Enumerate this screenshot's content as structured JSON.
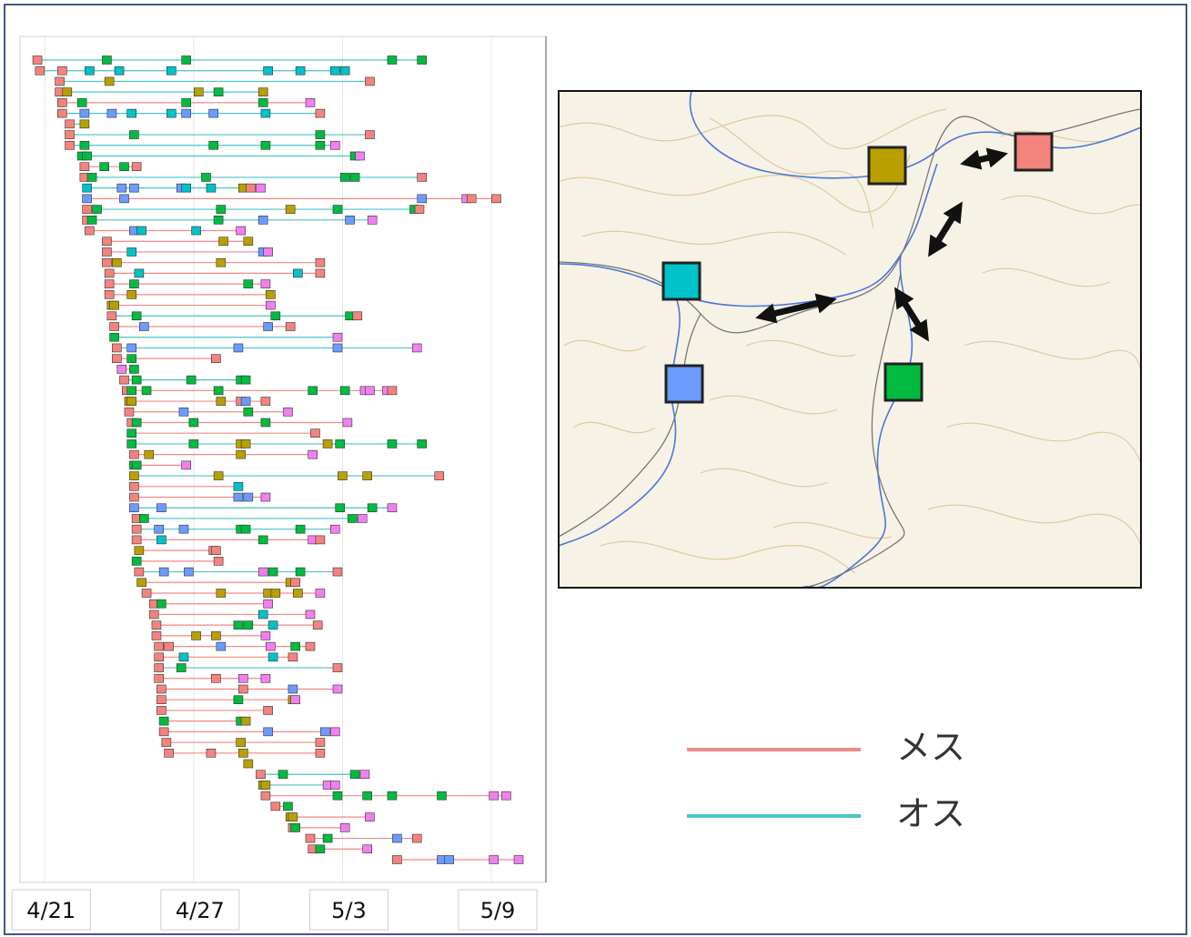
{
  "chart_data": {
    "type": "timeline",
    "xlim": [
      -1.0,
      20.2
    ],
    "xticks": [
      {
        "value": 0,
        "label": "4/21"
      },
      {
        "value": 6,
        "label": "4/27"
      },
      {
        "value": 12,
        "label": "5/3"
      },
      {
        "value": 18,
        "label": "5/9"
      }
    ],
    "grid": true,
    "series": [
      {
        "name": "メス",
        "color": "#f08a8a"
      },
      {
        "name": "オス",
        "color": "#4cc3c3"
      }
    ],
    "stations": [
      "#f4837d",
      "#b9a000",
      "#00c2c9",
      "#6b9bff",
      "#00bb3f",
      "#f27ff0"
    ],
    "rows": [
      {
        "series": 1,
        "x": [
          -0.3,
          2.5,
          5.7,
          14.0,
          15.2
        ],
        "station": [
          0,
          4,
          4,
          4,
          4
        ]
      },
      {
        "series": 1,
        "x": [
          -0.2,
          0.7,
          1.8,
          3.0,
          5.1,
          9.0,
          10.3,
          11.7,
          12.1
        ],
        "station": [
          0,
          0,
          2,
          2,
          2,
          2,
          2,
          2,
          2
        ]
      },
      {
        "series": 1,
        "x": [
          0.6,
          2.6,
          13.1
        ],
        "station": [
          0,
          1,
          0
        ]
      },
      {
        "series": 1,
        "x": [
          0.6,
          0.9,
          6.2,
          7.0,
          8.8
        ],
        "station": [
          0,
          1,
          1,
          4,
          1
        ]
      },
      {
        "series": 0,
        "x": [
          0.7,
          1.5,
          5.7,
          8.8,
          10.7
        ],
        "station": [
          0,
          4,
          4,
          4,
          5
        ]
      },
      {
        "series": 1,
        "x": [
          0.7,
          1.6,
          2.7,
          3.5,
          5.1,
          5.7,
          6.8,
          8.9,
          11.1
        ],
        "station": [
          0,
          3,
          3,
          2,
          2,
          3,
          3,
          2,
          0
        ]
      },
      {
        "series": 1,
        "x": [
          1.0,
          1.6
        ],
        "station": [
          0,
          1
        ]
      },
      {
        "series": 1,
        "x": [
          1.0,
          3.6,
          11.1,
          13.1
        ],
        "station": [
          0,
          4,
          4,
          0
        ]
      },
      {
        "series": 1,
        "x": [
          1.0,
          1.6,
          6.8,
          8.9,
          11.1,
          11.7
        ],
        "station": [
          0,
          4,
          4,
          4,
          4,
          5
        ]
      },
      {
        "series": 1,
        "x": [
          1.5,
          1.7,
          12.5,
          12.7
        ],
        "station": [
          4,
          4,
          4,
          5
        ]
      },
      {
        "series": 0,
        "x": [
          1.6,
          2.4,
          3.2,
          3.7
        ],
        "station": [
          0,
          4,
          4,
          0
        ]
      },
      {
        "series": 1,
        "x": [
          1.6,
          1.9,
          6.5,
          12.1,
          12.5,
          15.2
        ],
        "station": [
          0,
          4,
          4,
          4,
          4,
          0
        ]
      },
      {
        "series": 1,
        "x": [
          1.7,
          3.1,
          3.6,
          5.5,
          5.7,
          6.7,
          8.0,
          8.3,
          8.7
        ],
        "station": [
          2,
          3,
          3,
          3,
          2,
          2,
          1,
          0,
          5
        ]
      },
      {
        "series": 0,
        "x": [
          1.7,
          3.2,
          15.2,
          17.0,
          17.2,
          18.2
        ],
        "station": [
          3,
          3,
          3,
          5,
          0,
          0
        ]
      },
      {
        "series": 1,
        "x": [
          1.7,
          2.1,
          7.1,
          9.9,
          11.8,
          14.9,
          15.1
        ],
        "station": [
          0,
          4,
          4,
          1,
          4,
          4,
          0
        ]
      },
      {
        "series": 1,
        "x": [
          1.7,
          1.9,
          7.0,
          8.8,
          12.3,
          13.2
        ],
        "station": [
          0,
          4,
          4,
          3,
          3,
          5
        ]
      },
      {
        "series": 0,
        "x": [
          1.8,
          3.6,
          3.9,
          6.1,
          7.9
        ],
        "station": [
          0,
          3,
          2,
          2,
          5
        ]
      },
      {
        "series": 0,
        "x": [
          2.5,
          7.2,
          8.2
        ],
        "station": [
          0,
          1,
          1
        ]
      },
      {
        "series": 0,
        "x": [
          2.5,
          3.5,
          8.8,
          9.0
        ],
        "station": [
          0,
          2,
          3,
          5
        ]
      },
      {
        "series": 0,
        "x": [
          2.5,
          2.9,
          7.1,
          11.1
        ],
        "station": [
          0,
          1,
          1,
          0
        ]
      },
      {
        "series": 0,
        "x": [
          2.6,
          3.8,
          10.2,
          11.1
        ],
        "station": [
          0,
          2,
          2,
          0
        ]
      },
      {
        "series": 0,
        "x": [
          2.6,
          3.6,
          8.2,
          8.9
        ],
        "station": [
          0,
          4,
          4,
          5
        ]
      },
      {
        "series": 0,
        "x": [
          2.6,
          3.5,
          9.1
        ],
        "station": [
          0,
          1,
          1
        ]
      },
      {
        "series": 0,
        "x": [
          2.7,
          2.8,
          9.1
        ],
        "station": [
          1,
          1,
          5
        ]
      },
      {
        "series": 1,
        "x": [
          2.7,
          3.7,
          9.3,
          12.3,
          12.6
        ],
        "station": [
          0,
          4,
          4,
          4,
          0
        ]
      },
      {
        "series": 0,
        "x": [
          2.8,
          4.0,
          9.0,
          9.9
        ],
        "station": [
          0,
          3,
          3,
          0
        ]
      },
      {
        "series": 1,
        "x": [
          2.8,
          11.8
        ],
        "station": [
          4,
          5
        ]
      },
      {
        "series": 1,
        "x": [
          2.9,
          3.5,
          7.8,
          11.8,
          15.0
        ],
        "station": [
          0,
          3,
          3,
          3,
          5
        ]
      },
      {
        "series": 0,
        "x": [
          2.9,
          3.5,
          6.9
        ],
        "station": [
          0,
          4,
          0
        ]
      },
      {
        "series": 0,
        "x": [
          3.1,
          3.6
        ],
        "station": [
          5,
          4
        ]
      },
      {
        "series": 1,
        "x": [
          3.2,
          3.7,
          5.9,
          7.9,
          8.1
        ],
        "station": [
          0,
          4,
          4,
          4,
          4
        ]
      },
      {
        "series": 0,
        "x": [
          3.3,
          3.5,
          4.1,
          7.0,
          10.8,
          12.1,
          12.9,
          13.1,
          13.8,
          14.0
        ],
        "station": [
          0,
          4,
          4,
          4,
          4,
          4,
          5,
          5,
          5,
          0
        ]
      },
      {
        "series": 0,
        "x": [
          3.4,
          3.5,
          7.1,
          7.9,
          8.1,
          8.9
        ],
        "station": [
          1,
          1,
          1,
          0,
          3,
          0
        ]
      },
      {
        "series": 0,
        "x": [
          3.4,
          5.6,
          8.2,
          9.8
        ],
        "station": [
          0,
          3,
          4,
          5
        ]
      },
      {
        "series": 0,
        "x": [
          3.5,
          3.7,
          6.0,
          8.9,
          12.2
        ],
        "station": [
          0,
          4,
          4,
          4,
          5
        ]
      },
      {
        "series": 0,
        "x": [
          3.5,
          10.9
        ],
        "station": [
          4,
          0
        ]
      },
      {
        "series": 1,
        "x": [
          3.5,
          6.0,
          7.9,
          8.1,
          11.4,
          11.9,
          14.0,
          15.2
        ],
        "station": [
          4,
          4,
          1,
          1,
          1,
          4,
          4,
          4
        ]
      },
      {
        "series": 0,
        "x": [
          3.6,
          4.2,
          7.9,
          10.8
        ],
        "station": [
          0,
          1,
          1,
          5
        ]
      },
      {
        "series": 0,
        "x": [
          3.6,
          3.7,
          5.7
        ],
        "station": [
          4,
          4,
          5
        ]
      },
      {
        "series": 1,
        "x": [
          3.6,
          7.0,
          12.0,
          13.0,
          15.9
        ],
        "station": [
          1,
          1,
          1,
          1,
          0
        ]
      },
      {
        "series": 0,
        "x": [
          3.6,
          7.8
        ],
        "station": [
          0,
          2
        ]
      },
      {
        "series": 0,
        "x": [
          3.6,
          7.8,
          8.2,
          8.9
        ],
        "station": [
          0,
          3,
          3,
          5
        ]
      },
      {
        "series": 1,
        "x": [
          3.6,
          4.7,
          11.9,
          13.2,
          14.0
        ],
        "station": [
          3,
          3,
          4,
          4,
          5
        ]
      },
      {
        "series": 1,
        "x": [
          3.7,
          4.0,
          12.4,
          12.8
        ],
        "station": [
          0,
          4,
          4,
          5
        ]
      },
      {
        "series": 1,
        "x": [
          3.7,
          4.6,
          5.6,
          7.9,
          8.1,
          10.3,
          11.7
        ],
        "station": [
          0,
          3,
          3,
          4,
          4,
          4,
          5
        ]
      },
      {
        "series": 0,
        "x": [
          3.7,
          4.7,
          8.8,
          10.8,
          11.1
        ],
        "station": [
          0,
          2,
          4,
          5,
          0
        ]
      },
      {
        "series": 0,
        "x": [
          3.8,
          6.8,
          6.9
        ],
        "station": [
          1,
          0,
          0
        ]
      },
      {
        "series": 0,
        "x": [
          3.7,
          7.0
        ],
        "station": [
          4,
          0
        ]
      },
      {
        "series": 1,
        "x": [
          3.8,
          4.8,
          5.8,
          8.8,
          9.2,
          10.3,
          11.8
        ],
        "station": [
          0,
          3,
          3,
          5,
          4,
          4,
          0
        ]
      },
      {
        "series": 0,
        "x": [
          3.9,
          9.9,
          10.1
        ],
        "station": [
          1,
          1,
          0
        ]
      },
      {
        "series": 0,
        "x": [
          4.1,
          7.1,
          9.0,
          9.3,
          10.2,
          11.1
        ],
        "station": [
          0,
          1,
          1,
          1,
          1,
          5
        ]
      },
      {
        "series": 0,
        "x": [
          4.4,
          4.7,
          9.0
        ],
        "station": [
          0,
          4,
          5
        ]
      },
      {
        "series": 0,
        "x": [
          4.4,
          8.8,
          10.7
        ],
        "station": [
          0,
          2,
          5
        ]
      },
      {
        "series": 0,
        "x": [
          4.5,
          7.8,
          8.2,
          9.2,
          11.0
        ],
        "station": [
          0,
          4,
          4,
          2,
          0
        ]
      },
      {
        "series": 0,
        "x": [
          4.5,
          6.1,
          6.9,
          8.9
        ],
        "station": [
          0,
          1,
          1,
          5
        ]
      },
      {
        "series": 0,
        "x": [
          4.6,
          5.0,
          7.1,
          9.1,
          10.1,
          10.7
        ],
        "station": [
          0,
          0,
          3,
          5,
          4,
          0
        ]
      },
      {
        "series": 0,
        "x": [
          4.6,
          5.6,
          9.2,
          10.0
        ],
        "station": [
          0,
          2,
          2,
          0
        ]
      },
      {
        "series": 1,
        "x": [
          4.6,
          5.5,
          11.8
        ],
        "station": [
          0,
          4,
          0
        ]
      },
      {
        "series": 0,
        "x": [
          4.6,
          6.9,
          8.0,
          8.9
        ],
        "station": [
          0,
          0,
          5,
          5
        ]
      },
      {
        "series": 0,
        "x": [
          4.7,
          8.0,
          10.0,
          11.8
        ],
        "station": [
          0,
          0,
          3,
          5
        ]
      },
      {
        "series": 0,
        "x": [
          4.7,
          7.8,
          10.0,
          10.1
        ],
        "station": [
          0,
          4,
          1,
          5
        ]
      },
      {
        "series": 0,
        "x": [
          4.7,
          9.0
        ],
        "station": [
          0,
          0
        ]
      },
      {
        "series": 0,
        "x": [
          4.8,
          7.9,
          8.1
        ],
        "station": [
          4,
          4,
          1
        ]
      },
      {
        "series": 0,
        "x": [
          4.8,
          9.0,
          11.3,
          11.7
        ],
        "station": [
          0,
          3,
          3,
          5
        ]
      },
      {
        "series": 0,
        "x": [
          4.9,
          7.9,
          11.1
        ],
        "station": [
          0,
          1,
          0
        ]
      },
      {
        "series": 0,
        "x": [
          5.0,
          6.7,
          8.0,
          11.1
        ],
        "station": [
          0,
          0,
          1,
          0
        ]
      },
      {
        "series": 0,
        "x": [
          8.2
        ],
        "station": [
          1
        ]
      },
      {
        "series": 1,
        "x": [
          8.7,
          9.6,
          12.5,
          12.9
        ],
        "station": [
          0,
          4,
          4,
          5
        ]
      },
      {
        "series": 1,
        "x": [
          8.8,
          8.9,
          11.4,
          11.7
        ],
        "station": [
          1,
          1,
          5,
          5
        ]
      },
      {
        "series": 0,
        "x": [
          8.9,
          11.8,
          13.0,
          14.0,
          16.0,
          18.1,
          18.6
        ],
        "station": [
          0,
          4,
          4,
          4,
          4,
          5,
          5
        ]
      },
      {
        "series": 0,
        "x": [
          9.3,
          9.8
        ],
        "station": [
          0,
          4
        ]
      },
      {
        "series": 0,
        "x": [
          9.9,
          10.0,
          13.1
        ],
        "station": [
          1,
          1,
          5
        ]
      },
      {
        "series": 0,
        "x": [
          10.0,
          10.1,
          12.1
        ],
        "station": [
          0,
          4,
          5
        ]
      },
      {
        "series": 0,
        "x": [
          10.7,
          11.4,
          14.2,
          15.0
        ],
        "station": [
          0,
          4,
          3,
          0
        ]
      },
      {
        "series": 0,
        "x": [
          10.8,
          11.1,
          13.0
        ],
        "station": [
          0,
          4,
          5
        ]
      },
      {
        "series": 0,
        "x": [
          14.2,
          16.0,
          16.3,
          18.1,
          19.1
        ],
        "station": [
          0,
          3,
          3,
          5,
          5
        ]
      }
    ]
  }
}
